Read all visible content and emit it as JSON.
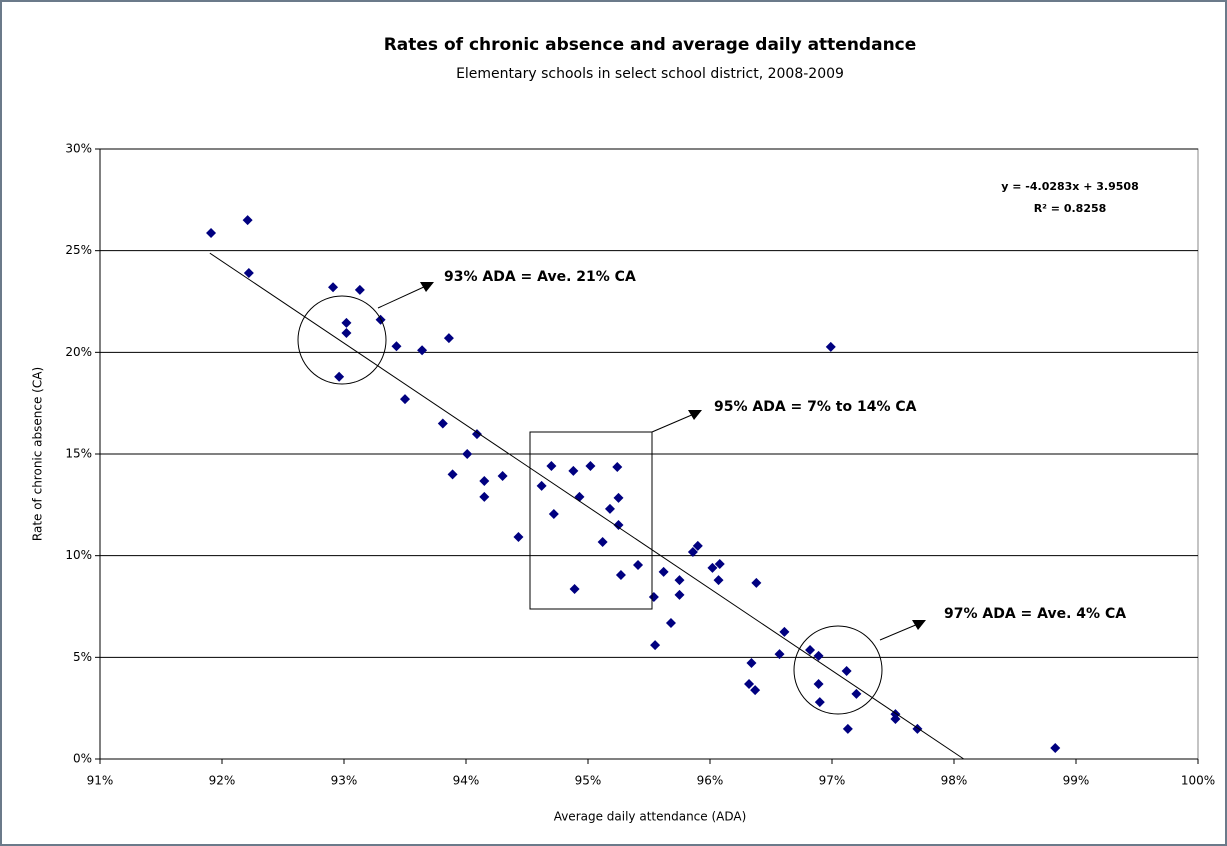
{
  "chart_data": {
    "type": "scatter",
    "title": "Rates of chronic absence and average daily attendance",
    "subtitle": "Elementary schools in select school district, 2008-2009",
    "x_label": "Average daily attendance (ADA)",
    "y_label": "Rate of chronic absence (CA)",
    "xlim": [
      91,
      100
    ],
    "ylim": [
      0,
      30
    ],
    "xticks": [
      {
        "value": 91,
        "label": "91%"
      },
      {
        "value": 92,
        "label": "92%"
      },
      {
        "value": 93,
        "label": "93%"
      },
      {
        "value": 94,
        "label": "94%"
      },
      {
        "value": 95,
        "label": "95%"
      },
      {
        "value": 96,
        "label": "96%"
      },
      {
        "value": 97,
        "label": "97%"
      },
      {
        "value": 98,
        "label": "98%"
      },
      {
        "value": 99,
        "label": "99%"
      },
      {
        "value": 100,
        "label": "100%"
      }
    ],
    "yticks": [
      {
        "value": 0,
        "label": "0%"
      },
      {
        "value": 5,
        "label": "5%"
      },
      {
        "value": 10,
        "label": "10%"
      },
      {
        "value": 15,
        "label": "15%"
      },
      {
        "value": 20,
        "label": "20%"
      },
      {
        "value": 25,
        "label": "25%"
      },
      {
        "value": 30,
        "label": "30%"
      }
    ],
    "grid": true,
    "color": "#000080",
    "x": [
      91.91,
      92.21,
      92.22,
      92.91,
      93.13,
      93.02,
      93.02,
      93.3,
      93.43,
      93.64,
      93.86,
      92.96,
      93.5,
      93.81,
      93.89,
      94.09,
      94.01,
      94.15,
      94.15,
      94.3,
      94.43,
      94.7,
      94.62,
      94.72,
      94.88,
      94.93,
      95.02,
      94.89,
      95.24,
      95.25,
      95.18,
      95.25,
      95.12,
      95.27,
      95.41,
      95.54,
      95.55,
      95.62,
      95.68,
      95.75,
      95.75,
      95.86,
      95.9,
      96.02,
      96.08,
      96.07,
      96.38,
      96.34,
      96.32,
      96.37,
      96.61,
      96.57,
      96.82,
      96.89,
      96.89,
      96.9,
      96.99,
      97.12,
      97.13,
      97.2,
      97.52,
      97.52,
      97.7,
      98.83
    ],
    "values": [
      25.87,
      26.5,
      23.9,
      23.2,
      23.07,
      21.45,
      20.95,
      21.6,
      20.3,
      20.1,
      20.7,
      18.8,
      17.7,
      16.5,
      14.0,
      15.98,
      15.0,
      13.67,
      12.89,
      13.92,
      10.92,
      14.41,
      13.43,
      12.05,
      14.17,
      12.89,
      14.41,
      8.36,
      14.36,
      12.84,
      12.3,
      11.51,
      10.67,
      9.05,
      9.54,
      7.97,
      5.6,
      9.2,
      6.69,
      8.8,
      8.07,
      10.18,
      10.48,
      9.4,
      9.59,
      8.8,
      8.66,
      4.72,
      3.69,
      3.39,
      6.25,
      5.16,
      5.36,
      5.07,
      3.69,
      2.8,
      20.27,
      4.33,
      1.48,
      3.2,
      2.21,
      1.97,
      1.48,
      0.54
    ],
    "trendline": {
      "x": [
        91.9,
        98.08
      ],
      "values": [
        24.88,
        0
      ],
      "color": "#000000"
    },
    "trendline_equation": "y = -4.0283x + 3.9508",
    "trendline_r2": "R² = 0.8258",
    "annotations": [
      "93% ADA = Ave. 21% CA",
      "95% ADA = 7% to 14% CA",
      "97% ADA = Ave. 4% CA"
    ]
  }
}
